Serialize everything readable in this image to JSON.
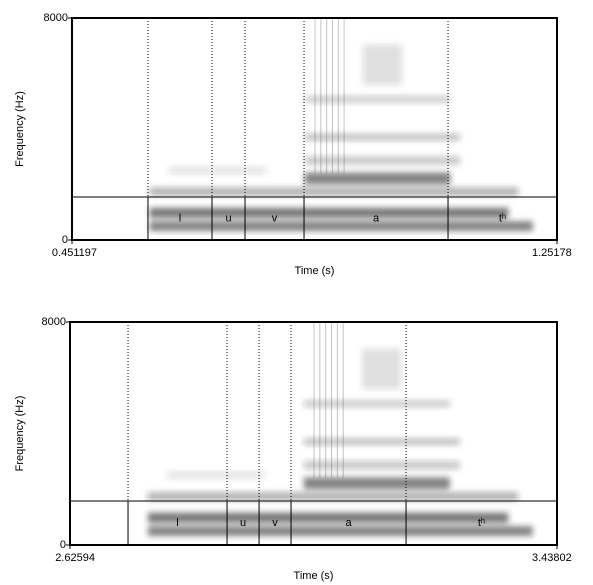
{
  "chart_data": [
    {
      "type": "spectrogram",
      "xlabel": "Time (s)",
      "ylabel": "Frequency (Hz)",
      "xlim": [
        0.451197,
        1.25178
      ],
      "xticks": [
        0.451197,
        1.25178
      ],
      "ylim": [
        0,
        8000
      ],
      "yticks": [
        0,
        8000
      ],
      "boundaries": [
        0.5766,
        0.6823,
        0.7368,
        0.8342,
        1.0719
      ],
      "segments": [
        "l",
        "u",
        "v",
        "a",
        "tʰ"
      ]
    },
    {
      "type": "spectrogram",
      "xlabel": "Time (s)",
      "ylabel": "Frequency (Hz)",
      "xlim": [
        2.62594,
        3.43802
      ],
      "xticks": [
        2.62594,
        3.43802
      ],
      "ylim": [
        0,
        8000
      ],
      "yticks": [
        0,
        8000
      ],
      "boundaries": [
        2.7227,
        2.8878,
        2.9412,
        2.9945,
        3.1863
      ],
      "segments": [
        "l",
        "u",
        "v",
        "a",
        "tʰ"
      ]
    }
  ]
}
